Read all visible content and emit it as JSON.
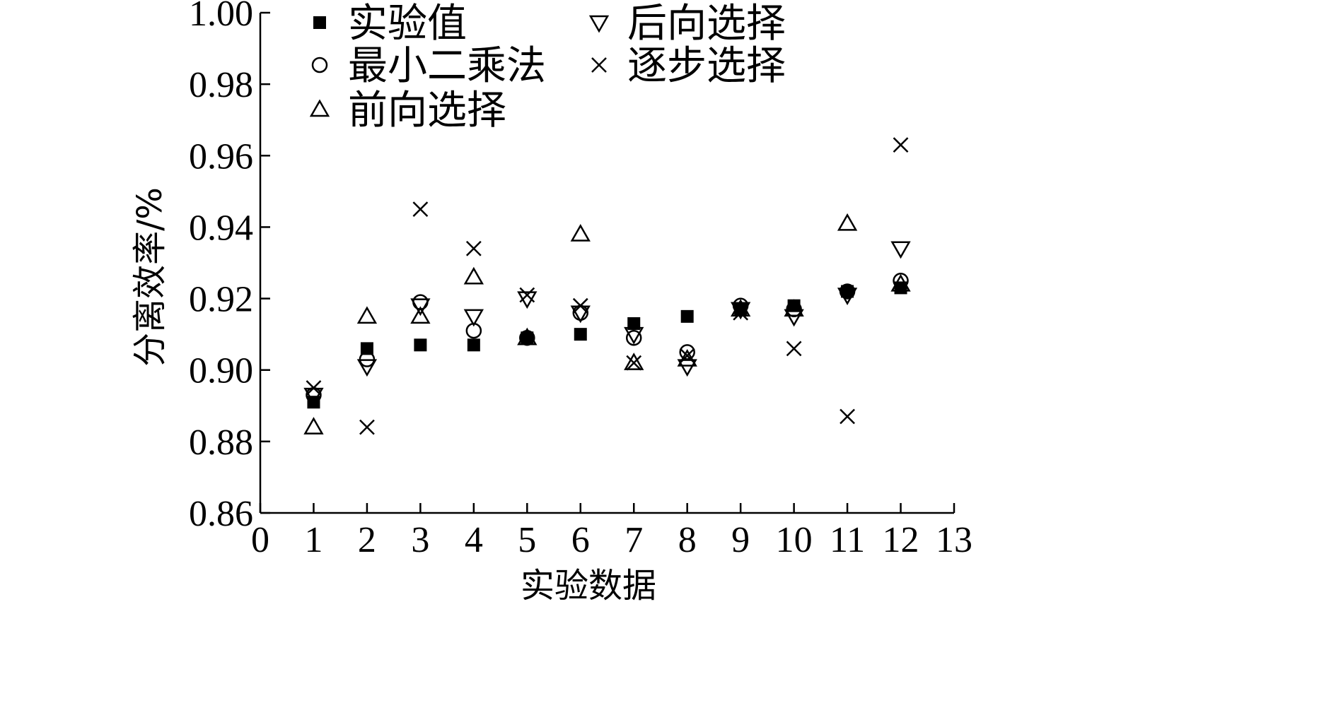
{
  "chart_data": {
    "type": "scatter",
    "xlabel": "实验数据",
    "ylabel": "分离效率/%",
    "xlim": [
      0,
      13
    ],
    "ylim": [
      0.86,
      1.0
    ],
    "x_ticks": [
      "0",
      "1",
      "2",
      "3",
      "4",
      "5",
      "6",
      "7",
      "8",
      "9",
      "10",
      "11",
      "12",
      "13"
    ],
    "y_ticks": [
      "0.86",
      "0.88",
      "0.90",
      "0.92",
      "0.94",
      "0.96",
      "0.98",
      "1.00"
    ],
    "legend_position": "top",
    "x": [
      1,
      2,
      3,
      4,
      5,
      6,
      7,
      8,
      9,
      10,
      11,
      12
    ],
    "series": [
      {
        "name": "实验值",
        "marker": "filled-square",
        "values": [
          0.891,
          0.906,
          0.907,
          0.907,
          0.909,
          0.91,
          0.913,
          0.915,
          0.917,
          0.918,
          0.922,
          0.923
        ]
      },
      {
        "name": "最小二乘法",
        "marker": "circle",
        "values": [
          0.893,
          0.903,
          0.919,
          0.911,
          0.909,
          0.916,
          0.909,
          0.905,
          0.918,
          0.917,
          0.922,
          0.925
        ]
      },
      {
        "name": "前向选择",
        "marker": "triangle-up",
        "values": [
          0.884,
          0.915,
          0.915,
          0.926,
          0.909,
          0.938,
          0.902,
          0.903,
          0.917,
          0.917,
          0.941,
          0.924
        ]
      },
      {
        "name": "后向选择",
        "marker": "triangle-down",
        "values": [
          0.893,
          0.901,
          0.918,
          0.915,
          0.92,
          0.916,
          0.91,
          0.901,
          0.917,
          0.915,
          0.921,
          0.934
        ]
      },
      {
        "name": "逐步选择",
        "marker": "cross",
        "values": [
          0.895,
          0.884,
          0.945,
          0.934,
          0.921,
          0.918,
          0.902,
          0.904,
          0.916,
          0.906,
          0.887,
          0.963
        ]
      }
    ]
  }
}
